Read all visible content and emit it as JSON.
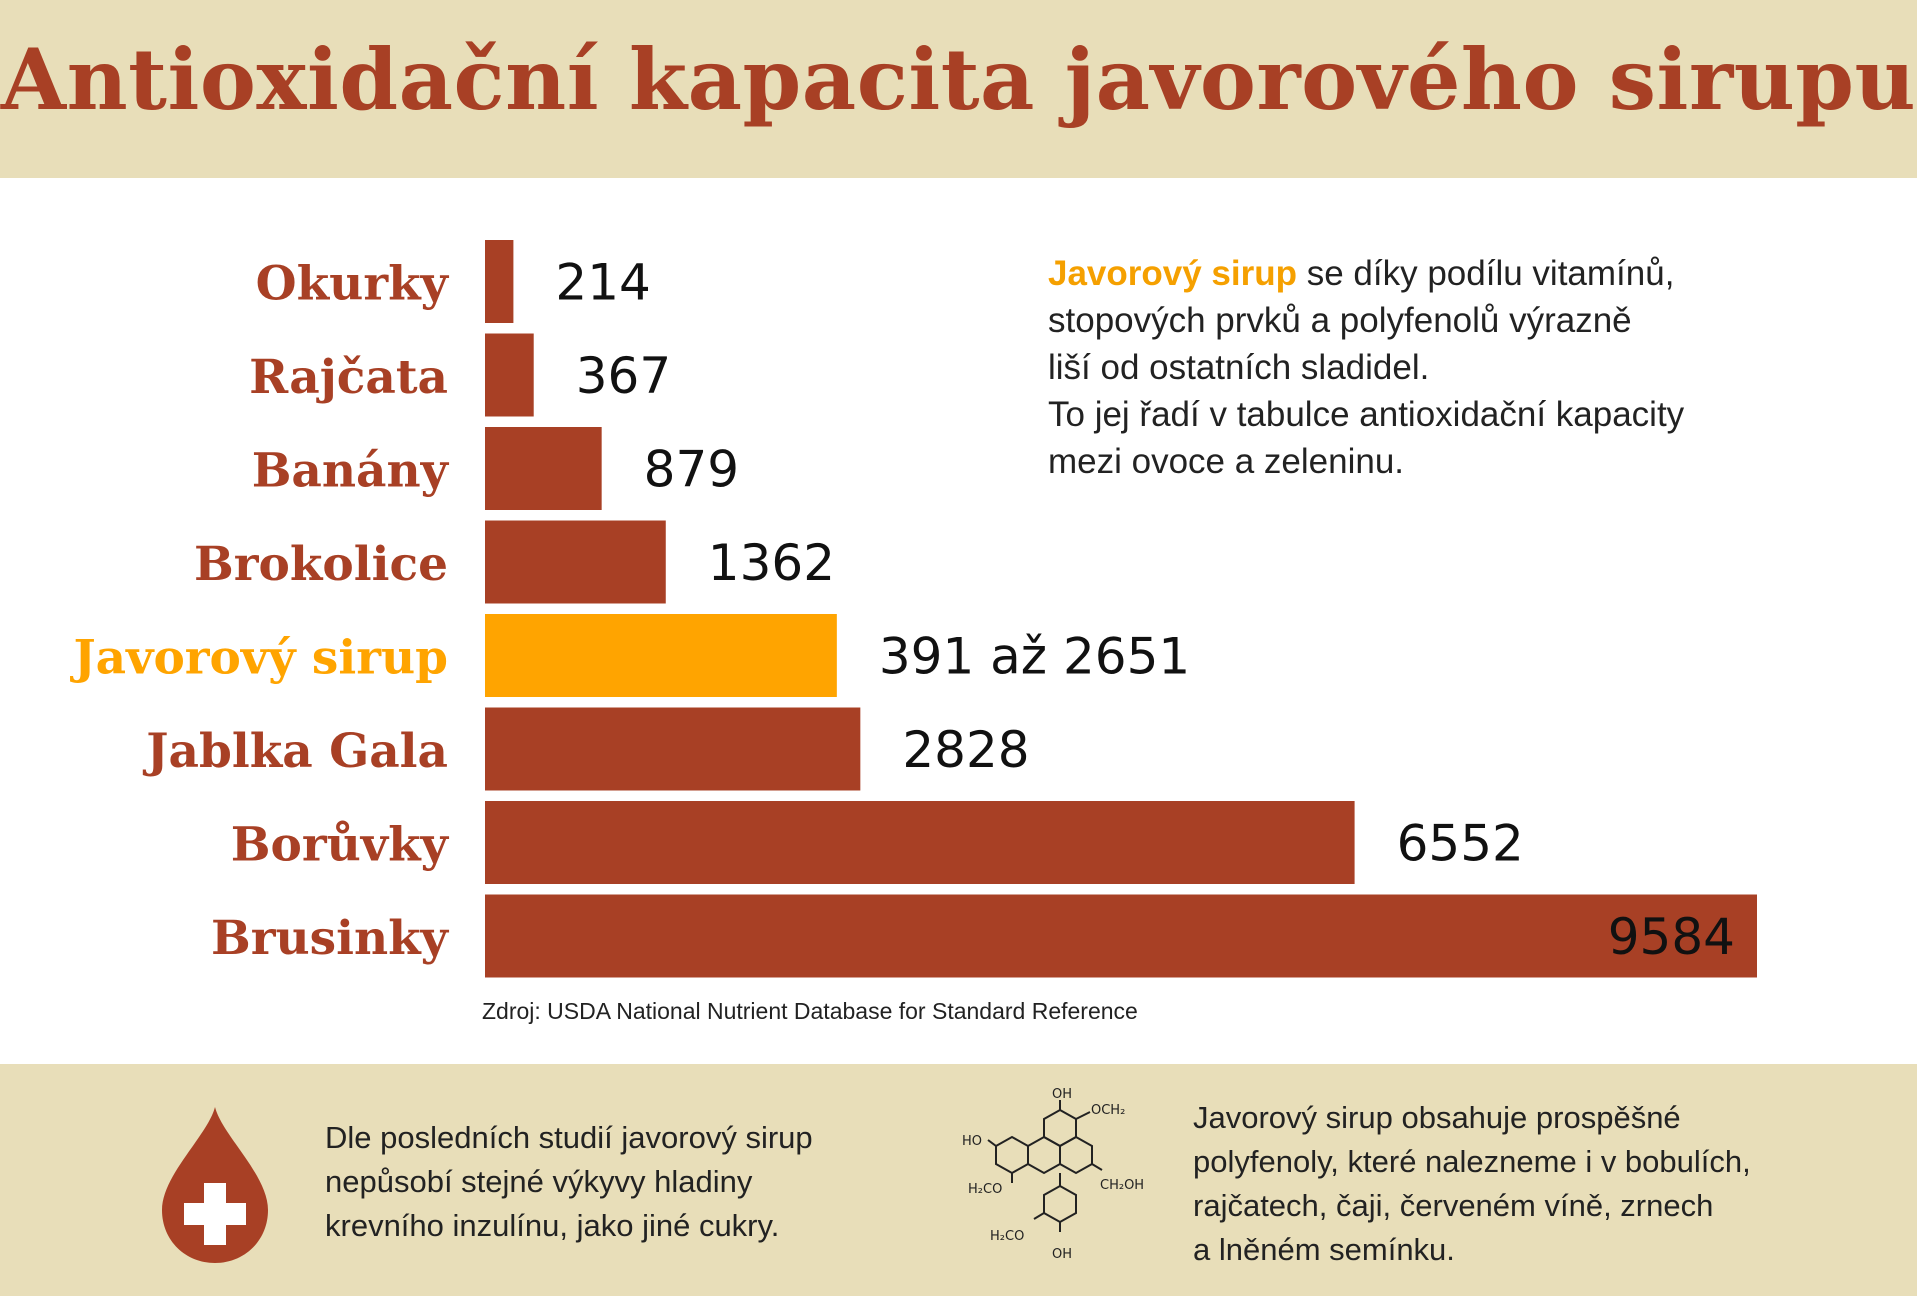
{
  "title": "Antioxidační kapacita javorového sirupu",
  "chart_data": {
    "type": "bar",
    "orientation": "horizontal",
    "categories": [
      "Okurky",
      "Rajčata",
      "Banány",
      "Brokolice",
      "Javorový sirup",
      "Jablka Gala",
      "Borůvky",
      "Brusinky"
    ],
    "values": [
      214,
      367,
      879,
      1362,
      2651,
      2828,
      6552,
      9584
    ],
    "value_labels": [
      "214",
      "367",
      "879",
      "1362",
      "391 až 2651",
      "2828",
      "6552",
      "9584"
    ],
    "highlight_category": "Javorový sirup",
    "highlight_range": [
      391,
      2651
    ],
    "xlim": [
      0,
      9584
    ],
    "grid": false,
    "colors": {
      "bar": "#a84025",
      "highlight": "#ffa400",
      "label": "#a84025",
      "highlight_label": "#ffa400",
      "inside_label": "#ffffff"
    }
  },
  "description": {
    "highlight": "Javorový sirup",
    "text_line1_rest": " se díky podílu vitamínů,",
    "line2": "stopových prvků a polyfenolů výrazně",
    "line3": "liší od ostatních sladidel.",
    "line4": "To jej řadí v tabulce antioxidační kapacity",
    "line5": "mezi ovoce a zeleninu."
  },
  "source": "Zdroj: USDA National Nutrient Database for Standard Reference",
  "footer": {
    "left_lines": [
      "Dle posledních studií javorový sirup",
      "nepůsobí stejné výkyvy hladiny",
      "krevního inzulínu, jako jiné cukry."
    ],
    "right_lines": [
      "Javorový sirup obsahuje prospěšné",
      "polyfenoly, které nalezneme i v bobulích,",
      "rajčatech, čaji, červeném víně, zrnech",
      "a lněném semínku."
    ],
    "molecule_labels": {
      "oh_top": "OH",
      "och2": "OCH₂",
      "ho": "HO",
      "h2co": "H₂CO",
      "ch2oh": "CH₂OH",
      "h2co_low": "H₂CO",
      "oh_bottom": "OH"
    },
    "icons": {
      "drop": "blood-drop-cross-icon",
      "molecule": "polyphenol-molecule-icon"
    }
  }
}
